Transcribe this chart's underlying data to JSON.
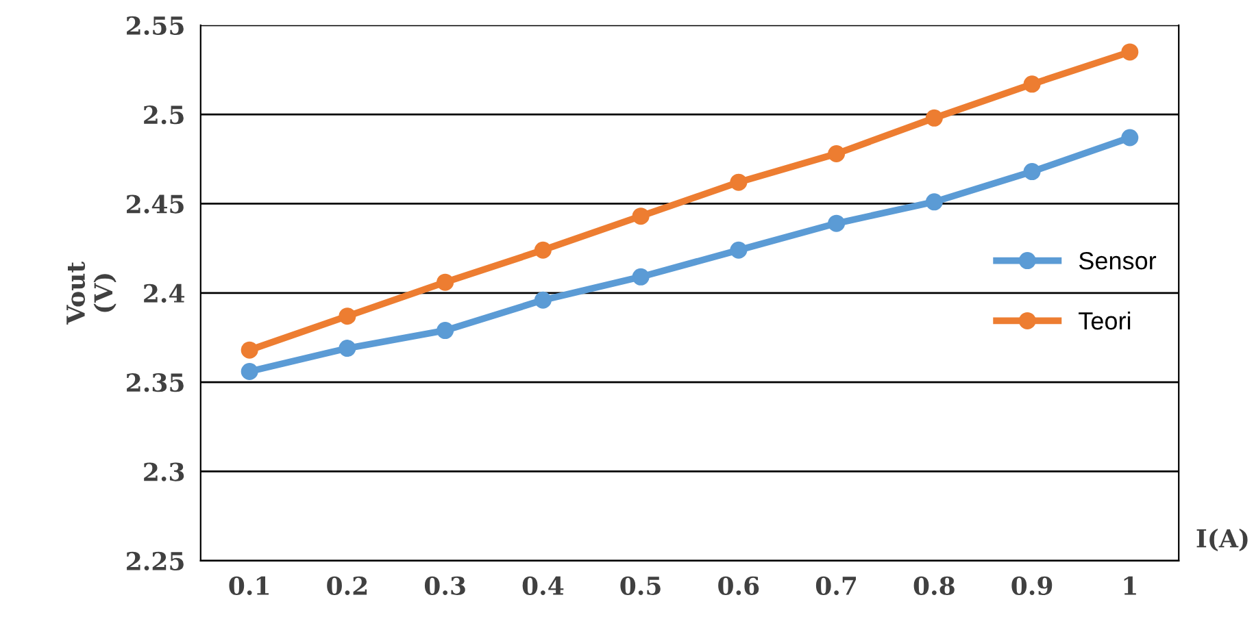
{
  "chart_data": {
    "type": "line",
    "xlabel": "I(A)",
    "ylabel": "Vout\n(V)",
    "categories": [
      "0.1",
      "0.2",
      "0.3",
      "0.4",
      "0.5",
      "0.6",
      "0.7",
      "0.8",
      "0.9",
      "1"
    ],
    "series": [
      {
        "name": "Sensor",
        "color": "#5b9bd5",
        "values": [
          2.356,
          2.369,
          2.379,
          2.396,
          2.409,
          2.424,
          2.439,
          2.451,
          2.468,
          2.487
        ]
      },
      {
        "name": "Teori",
        "color": "#ed7d31",
        "values": [
          2.368,
          2.387,
          2.406,
          2.424,
          2.443,
          2.462,
          2.478,
          2.498,
          2.517,
          2.535
        ]
      }
    ],
    "ylim": [
      2.25,
      2.55
    ],
    "yticks": [
      2.25,
      2.3,
      2.35,
      2.4,
      2.45,
      2.5,
      2.55
    ],
    "grid": "y",
    "legend": "right",
    "marker": "circle",
    "line_style": "solid"
  }
}
